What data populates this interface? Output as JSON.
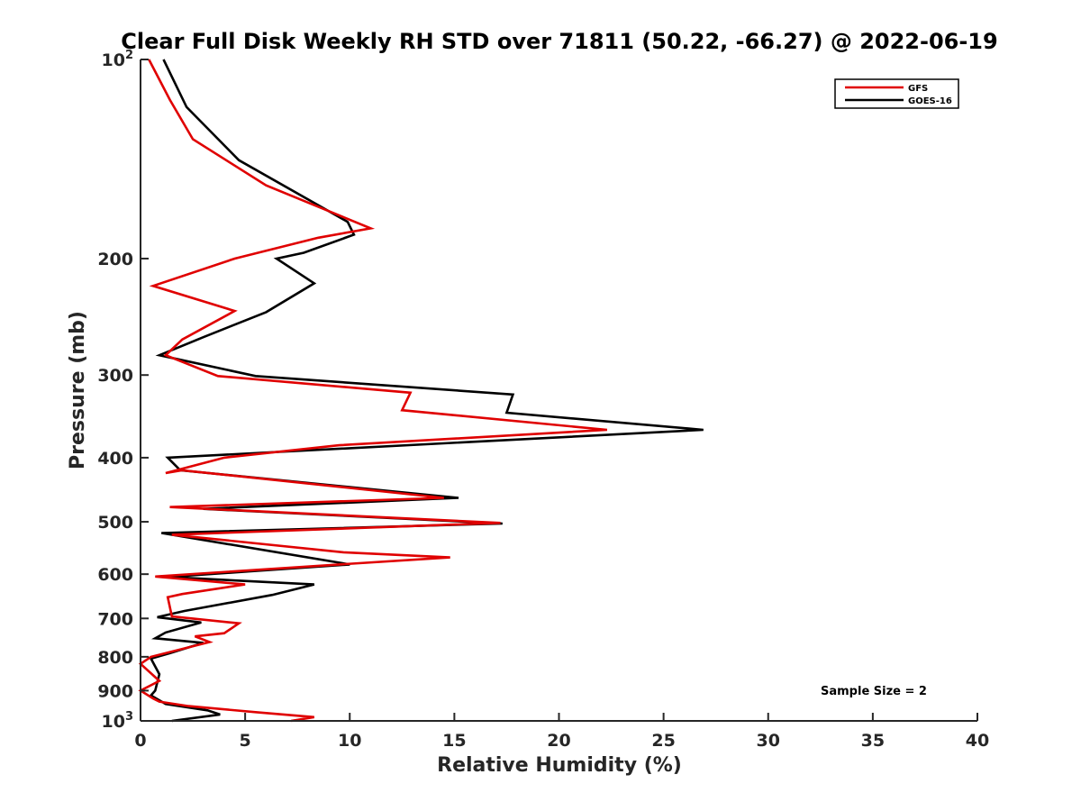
{
  "chart_data": {
    "type": "line",
    "title": "Clear Full Disk Weekly RH STD over 71811 (50.22, -66.27) @ 2022-06-19",
    "xlabel": "Relative Humidity (%)",
    "ylabel": "Pressure (mb)",
    "xlim": [
      0,
      40
    ],
    "ylim": [
      100,
      1000
    ],
    "y_scale": "log",
    "y_reversed": true,
    "grid": false,
    "legend_position": "top-right",
    "x_ticks": [
      0,
      5,
      10,
      15,
      20,
      25,
      30,
      35,
      40
    ],
    "x_tick_labels": [
      "0",
      "5",
      "10",
      "15",
      "20",
      "25",
      "30",
      "35",
      "40"
    ],
    "y_ticks": [
      {
        "value": 100,
        "base": "10",
        "exp": "2"
      },
      {
        "value": 200,
        "label": "200"
      },
      {
        "value": 300,
        "label": "300"
      },
      {
        "value": 400,
        "label": "400"
      },
      {
        "value": 500,
        "label": "500"
      },
      {
        "value": 600,
        "label": "600"
      },
      {
        "value": 700,
        "label": "700"
      },
      {
        "value": 800,
        "label": "800"
      },
      {
        "value": 900,
        "label": "900"
      },
      {
        "value": 1000,
        "base": "10",
        "exp": "3"
      }
    ],
    "series": [
      {
        "name": "GFS",
        "color": "#e00000",
        "points": [
          [
            0.4,
            100
          ],
          [
            1.4,
            115
          ],
          [
            2.5,
            132
          ],
          [
            6.0,
            155
          ],
          [
            11.0,
            180
          ],
          [
            8.5,
            186
          ],
          [
            4.5,
            200
          ],
          [
            0.6,
            220
          ],
          [
            4.5,
            240
          ],
          [
            2.0,
            265
          ],
          [
            1.2,
            280
          ],
          [
            3.7,
            301
          ],
          [
            12.9,
            319
          ],
          [
            12.5,
            339
          ],
          [
            22.3,
            363
          ],
          [
            9.5,
            383
          ],
          [
            4.0,
            400
          ],
          [
            1.2,
            422
          ],
          [
            2.0,
            418
          ],
          [
            14.5,
            460
          ],
          [
            1.4,
            475
          ],
          [
            17.2,
            502
          ],
          [
            1.5,
            523
          ],
          [
            9.7,
            556
          ],
          [
            14.8,
            566
          ],
          [
            9.5,
            580
          ],
          [
            0.7,
            605
          ],
          [
            5.0,
            622
          ],
          [
            2.0,
            643
          ],
          [
            1.3,
            650
          ],
          [
            1.5,
            695
          ],
          [
            4.7,
            712
          ],
          [
            4.0,
            737
          ],
          [
            2.6,
            745
          ],
          [
            3.3,
            760
          ],
          [
            0.5,
            800
          ],
          [
            0.0,
            820
          ],
          [
            0.9,
            870
          ],
          [
            0.0,
            900
          ],
          [
            0.6,
            925
          ],
          [
            0.9,
            935
          ],
          [
            2.3,
            950
          ],
          [
            5.5,
            970
          ],
          [
            8.3,
            987
          ],
          [
            7.2,
            1000
          ]
        ]
      },
      {
        "name": "GOES-16",
        "color": "#000000",
        "points": [
          [
            1.1,
            100
          ],
          [
            2.2,
            118
          ],
          [
            4.7,
            142
          ],
          [
            9.9,
            176
          ],
          [
            10.2,
            184
          ],
          [
            7.8,
            196
          ],
          [
            6.5,
            200
          ],
          [
            8.3,
            218
          ],
          [
            6.0,
            241
          ],
          [
            3.0,
            263
          ],
          [
            0.9,
            280
          ],
          [
            5.5,
            301
          ],
          [
            17.8,
            321
          ],
          [
            17.5,
            342
          ],
          [
            26.9,
            363
          ],
          [
            1.3,
            400
          ],
          [
            1.9,
            418
          ],
          [
            15.2,
            460
          ],
          [
            3.0,
            478
          ],
          [
            17.3,
            503
          ],
          [
            1.0,
            520
          ],
          [
            10.0,
            580
          ],
          [
            1.3,
            606
          ],
          [
            8.3,
            622
          ],
          [
            6.3,
            645
          ],
          [
            2.1,
            682
          ],
          [
            0.8,
            697
          ],
          [
            2.9,
            710
          ],
          [
            1.2,
            735
          ],
          [
            0.7,
            750
          ],
          [
            3.0,
            762
          ],
          [
            1.4,
            790
          ],
          [
            0.5,
            805
          ],
          [
            0.9,
            850
          ],
          [
            0.7,
            900
          ],
          [
            0.5,
            915
          ],
          [
            1.2,
            943
          ],
          [
            3.2,
            964
          ],
          [
            3.8,
            978
          ],
          [
            1.5,
            1000
          ]
        ]
      }
    ],
    "annotations": [
      {
        "text": "Sample Size = 2",
        "x": 32.7,
        "y": 938
      }
    ]
  }
}
